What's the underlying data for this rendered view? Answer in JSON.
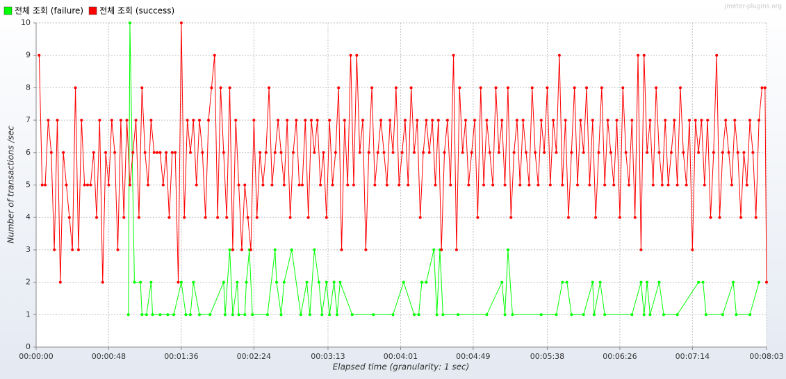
{
  "chart_data": {
    "type": "line",
    "watermark": "jmeter-plugins.org",
    "y_label": "Number of transactions /sec",
    "x_label": "Elapsed time (granularity: 1 sec)",
    "xlim": [
      0,
      483
    ],
    "xticks": [
      {
        "value": 0,
        "label": "00:00:00"
      },
      {
        "value": 48,
        "label": "00:00:48"
      },
      {
        "value": 96,
        "label": "00:01:36"
      },
      {
        "value": 144,
        "label": "00:02:24"
      },
      {
        "value": 193,
        "label": "00:03:13"
      },
      {
        "value": 241,
        "label": "00:04:01"
      },
      {
        "value": 289,
        "label": "00:04:49"
      },
      {
        "value": 338,
        "label": "00:05:38"
      },
      {
        "value": 386,
        "label": "00:06:26"
      },
      {
        "value": 434,
        "label": "00:07:14"
      },
      {
        "value": 483,
        "label": "00:08:03"
      }
    ],
    "ylim": [
      0,
      10
    ],
    "yticks": [
      0,
      1,
      2,
      3,
      4,
      5,
      6,
      7,
      8,
      9,
      10
    ],
    "grid": true,
    "legend": "top-left",
    "series": [
      {
        "name": "전체 조회 (failure)",
        "color": "#00ff00",
        "x": [
          61,
          62,
          65,
          69,
          70,
          73,
          76,
          77,
          82,
          87,
          91,
          96,
          99,
          102,
          104,
          108,
          115,
          124,
          125,
          128,
          130,
          133,
          134,
          138,
          139,
          141,
          143,
          153,
          158,
          159,
          162,
          164,
          169,
          175,
          179,
          181,
          184,
          187,
          189,
          192,
          194,
          197,
          199,
          201,
          209,
          223,
          236,
          243,
          250,
          253,
          255,
          258,
          263,
          265,
          267,
          269,
          279,
          298,
          308,
          310,
          312,
          315,
          334,
          344,
          348,
          351,
          354,
          362,
          368,
          369,
          373,
          376,
          394,
          400,
          402,
          404,
          406,
          412,
          415,
          424,
          438,
          441,
          443,
          454,
          461,
          463,
          472,
          478
        ],
        "values": [
          1,
          10,
          2,
          2,
          1,
          1,
          2,
          1,
          1,
          1,
          1,
          2,
          1,
          1,
          2,
          1,
          1,
          2,
          1,
          3,
          1,
          2,
          1,
          1,
          2,
          3,
          1,
          1,
          3,
          2,
          1,
          2,
          3,
          1,
          2,
          1,
          3,
          2,
          1,
          2,
          1,
          2,
          1,
          2,
          1,
          1,
          1,
          2,
          1,
          1,
          2,
          2,
          3,
          1,
          3,
          1,
          1,
          1,
          2,
          1,
          3,
          1,
          1,
          1,
          2,
          2,
          1,
          1,
          2,
          1,
          2,
          1,
          1,
          2,
          1,
          2,
          1,
          2,
          1,
          1,
          2,
          2,
          1,
          1,
          2,
          1,
          1,
          2
        ]
      },
      {
        "name": "전체 조회 (success)",
        "color": "#ff0000",
        "x": [
          2,
          4,
          6,
          8,
          10,
          12,
          14,
          16,
          18,
          20,
          22,
          24,
          26,
          28,
          30,
          32,
          34,
          36,
          38,
          40,
          42,
          44,
          46,
          48,
          50,
          52,
          54,
          56,
          58,
          60,
          62,
          64,
          66,
          68,
          70,
          72,
          74,
          76,
          78,
          80,
          82,
          84,
          86,
          88,
          90,
          92,
          94,
          96,
          98,
          100,
          102,
          104,
          106,
          108,
          110,
          112,
          114,
          116,
          118,
          120,
          122,
          124,
          126,
          128,
          130,
          132,
          134,
          136,
          138,
          140,
          142,
          144,
          146,
          148,
          150,
          152,
          154,
          156,
          158,
          160,
          162,
          164,
          166,
          168,
          170,
          172,
          174,
          176,
          178,
          180,
          182,
          184,
          186,
          188,
          190,
          192,
          194,
          196,
          198,
          200,
          202,
          204,
          206,
          208,
          210,
          212,
          214,
          216,
          218,
          220,
          222,
          224,
          226,
          228,
          230,
          232,
          234,
          236,
          238,
          240,
          242,
          244,
          246,
          248,
          250,
          252,
          254,
          256,
          258,
          260,
          262,
          264,
          266,
          268,
          270,
          272,
          274,
          276,
          278,
          280,
          282,
          284,
          286,
          288,
          290,
          292,
          294,
          296,
          298,
          300,
          302,
          304,
          306,
          308,
          310,
          312,
          314,
          316,
          318,
          320,
          322,
          324,
          326,
          328,
          330,
          332,
          334,
          336,
          338,
          340,
          342,
          344,
          346,
          348,
          350,
          352,
          354,
          356,
          358,
          360,
          362,
          364,
          366,
          368,
          370,
          372,
          374,
          376,
          378,
          380,
          382,
          384,
          386,
          388,
          390,
          392,
          394,
          396,
          398,
          400,
          402,
          404,
          406,
          408,
          410,
          412,
          414,
          416,
          418,
          420,
          422,
          424,
          426,
          428,
          430,
          432,
          434,
          436,
          438,
          440,
          442,
          444,
          446,
          448,
          450,
          452,
          454,
          456,
          458,
          460,
          462,
          464,
          466,
          468,
          470,
          472,
          474,
          476,
          478,
          480,
          482,
          483
        ],
        "values": [
          9,
          5,
          5,
          7,
          6,
          3,
          7,
          2,
          6,
          5,
          4,
          3,
          8,
          3,
          7,
          5,
          5,
          5,
          6,
          4,
          7,
          2,
          6,
          5,
          7,
          6,
          3,
          7,
          4,
          7,
          5,
          6,
          7,
          4,
          8,
          6,
          5,
          7,
          6,
          6,
          6,
          5,
          6,
          4,
          6,
          6,
          2,
          10,
          4,
          7,
          6,
          7,
          5,
          7,
          6,
          4,
          7,
          8,
          9,
          4,
          8,
          6,
          4,
          8,
          3,
          7,
          5,
          3,
          5,
          4,
          3,
          7,
          4,
          6,
          5,
          6,
          8,
          5,
          6,
          7,
          6,
          5,
          7,
          4,
          6,
          7,
          5,
          5,
          7,
          4,
          7,
          6,
          7,
          5,
          6,
          4,
          7,
          5,
          6,
          8,
          3,
          7,
          5,
          9,
          5,
          9,
          6,
          7,
          3,
          6,
          8,
          5,
          6,
          7,
          6,
          5,
          7,
          6,
          8,
          5,
          6,
          7,
          5,
          8,
          6,
          7,
          4,
          6,
          7,
          6,
          7,
          5,
          7,
          3,
          6,
          7,
          5,
          9,
          3,
          8,
          6,
          7,
          5,
          6,
          7,
          4,
          8,
          5,
          7,
          6,
          5,
          8,
          6,
          7,
          5,
          8,
          4,
          6,
          7,
          5,
          7,
          6,
          5,
          8,
          6,
          5,
          7,
          6,
          8,
          5,
          7,
          6,
          9,
          5,
          7,
          4,
          6,
          8,
          5,
          7,
          6,
          8,
          5,
          7,
          4,
          6,
          8,
          5,
          7,
          6,
          5,
          7,
          4,
          8,
          6,
          5,
          7,
          4,
          9,
          3,
          9,
          6,
          7,
          5,
          8,
          6,
          5,
          7,
          5,
          6,
          7,
          5,
          8,
          6,
          5,
          7,
          3,
          7,
          6,
          7,
          5,
          7,
          4,
          6,
          9,
          4,
          6,
          7,
          6,
          5,
          7,
          6,
          4,
          6,
          5,
          7,
          6,
          4,
          7,
          8,
          8,
          2
        ]
      }
    ]
  }
}
